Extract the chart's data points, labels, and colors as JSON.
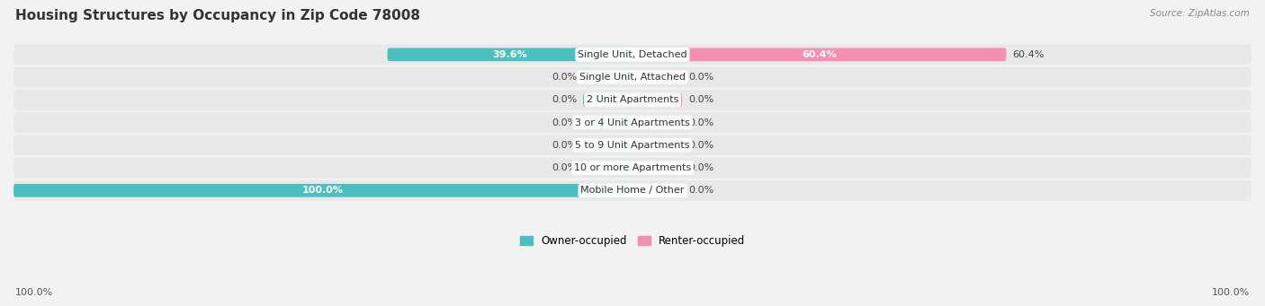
{
  "title": "Housing Structures by Occupancy in Zip Code 78008",
  "source": "Source: ZipAtlas.com",
  "categories": [
    "Single Unit, Detached",
    "Single Unit, Attached",
    "2 Unit Apartments",
    "3 or 4 Unit Apartments",
    "5 to 9 Unit Apartments",
    "10 or more Apartments",
    "Mobile Home / Other"
  ],
  "owner_values": [
    39.6,
    0.0,
    0.0,
    0.0,
    0.0,
    0.0,
    100.0
  ],
  "renter_values": [
    60.4,
    0.0,
    0.0,
    0.0,
    0.0,
    0.0,
    0.0
  ],
  "owner_color": "#4BBFC0",
  "renter_color": "#F48FB1",
  "bg_color": "#f2f2f2",
  "row_bg_color": "#e8e8e8",
  "title_fontsize": 11,
  "label_fontsize": 8,
  "bar_height": 0.58,
  "stub_size": 8.0,
  "xlim_left": -100,
  "xlim_right": 100,
  "axis_label_left": "100.0%",
  "axis_label_right": "100.0%",
  "owner_label_color_inside": "#ffffff",
  "owner_label_color_outside": "#555555",
  "renter_label_color_inside": "#ffffff",
  "renter_label_color_outside": "#555555"
}
